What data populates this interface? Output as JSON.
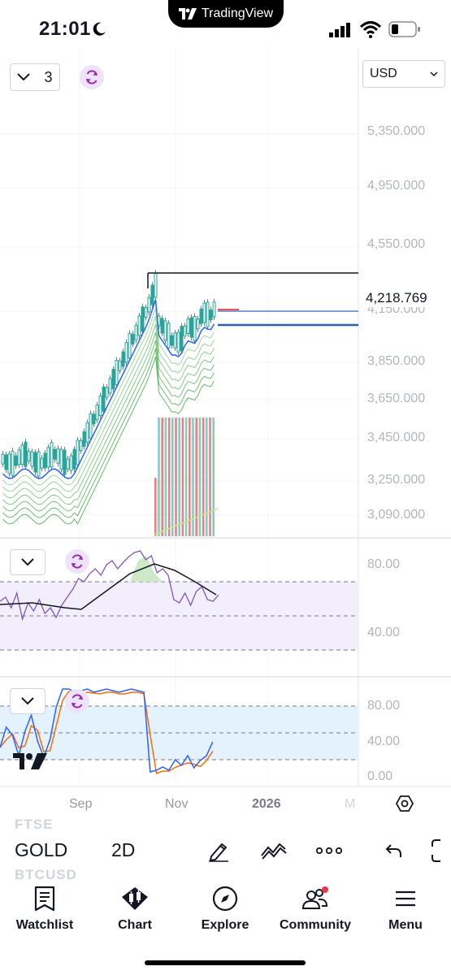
{
  "status_bar": {
    "time": "21:01",
    "app_badge": "TradingView"
  },
  "chart": {
    "interval_count": "3",
    "currency": "USD",
    "price_axis": [
      "5,350.000",
      "4,950.000",
      "4,550.000",
      "4,150.000",
      "3,850.000",
      "3,650.000",
      "3,450.000",
      "3,250.000",
      "3,090.000"
    ],
    "last_price": "4,218.769",
    "time_axis": [
      "Sep",
      "Nov",
      "2026",
      "M"
    ],
    "colors": {
      "up": "#26a69a",
      "down": "#ef5350",
      "ema": "#2962ff",
      "ribbon": "#4caf50",
      "rsi": "#7e57c2",
      "stoch_k": "#2962ff",
      "stoch_d": "#ff6d00"
    }
  },
  "rsi": {
    "levels": [
      "80.00",
      "40.00"
    ]
  },
  "stoch": {
    "levels": [
      "80.00",
      "40.00",
      "0.00"
    ]
  },
  "toolbar": {
    "symbol": "GOLD",
    "timeframe": "2D",
    "ghost_symbols": [
      "FTSE",
      "BTCUSD"
    ]
  },
  "nav": {
    "items": [
      {
        "label": "Watchlist",
        "icon": "watchlist-icon"
      },
      {
        "label": "Chart",
        "icon": "chart-icon"
      },
      {
        "label": "Explore",
        "icon": "compass-icon"
      },
      {
        "label": "Community",
        "icon": "community-icon"
      },
      {
        "label": "Menu",
        "icon": "menu-icon"
      }
    ]
  }
}
